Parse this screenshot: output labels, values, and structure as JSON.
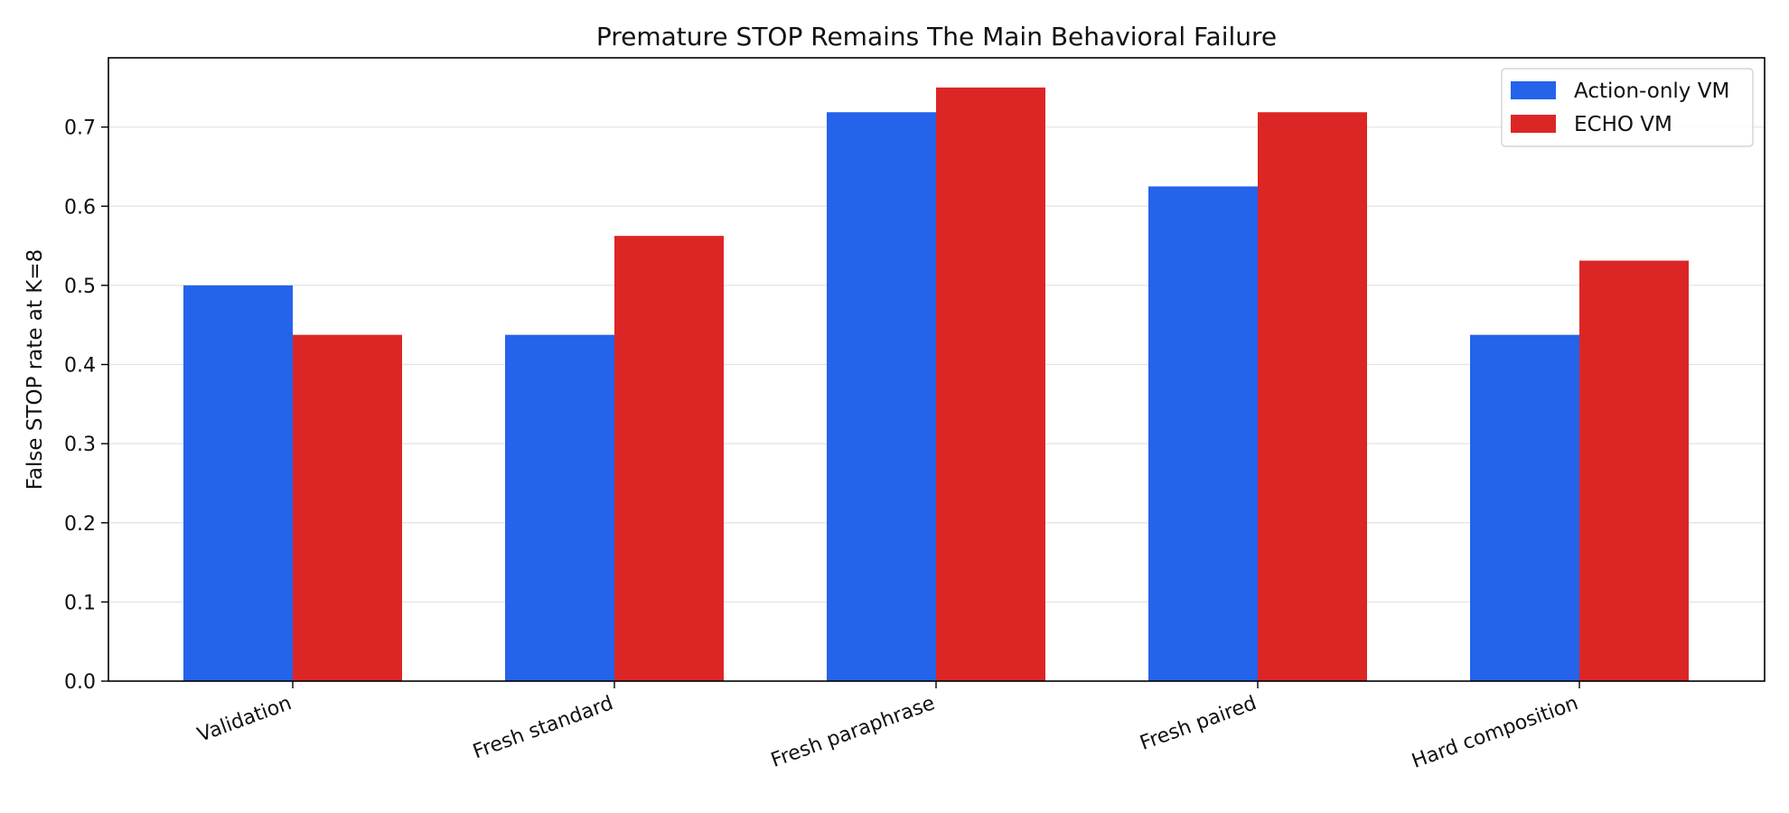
{
  "chart_data": {
    "type": "bar",
    "title": "Premature STOP Remains The Main Behavioral Failure",
    "xlabel": "",
    "ylabel": "False STOP rate at K=8",
    "categories": [
      "Validation",
      "Fresh standard",
      "Fresh paraphrase",
      "Fresh paired",
      "Hard composition"
    ],
    "series": [
      {
        "name": "Action-only VM",
        "color": "#2563eb",
        "values": [
          0.5,
          0.4375,
          0.71875,
          0.625,
          0.4375
        ]
      },
      {
        "name": "ECHO VM",
        "color": "#dc2626",
        "values": [
          0.4375,
          0.5625,
          0.75,
          0.71875,
          0.53125
        ]
      }
    ],
    "ylim": [
      0,
      0.7875
    ],
    "yticks": [
      "0.0",
      "0.1",
      "0.2",
      "0.3",
      "0.4",
      "0.5",
      "0.6",
      "0.7"
    ],
    "ytick_values": [
      0,
      0.1,
      0.2,
      0.3,
      0.4,
      0.5,
      0.6,
      0.7
    ],
    "grid": "horizontal",
    "legend_position": "top-right",
    "xtick_rotation_deg": -20
  }
}
